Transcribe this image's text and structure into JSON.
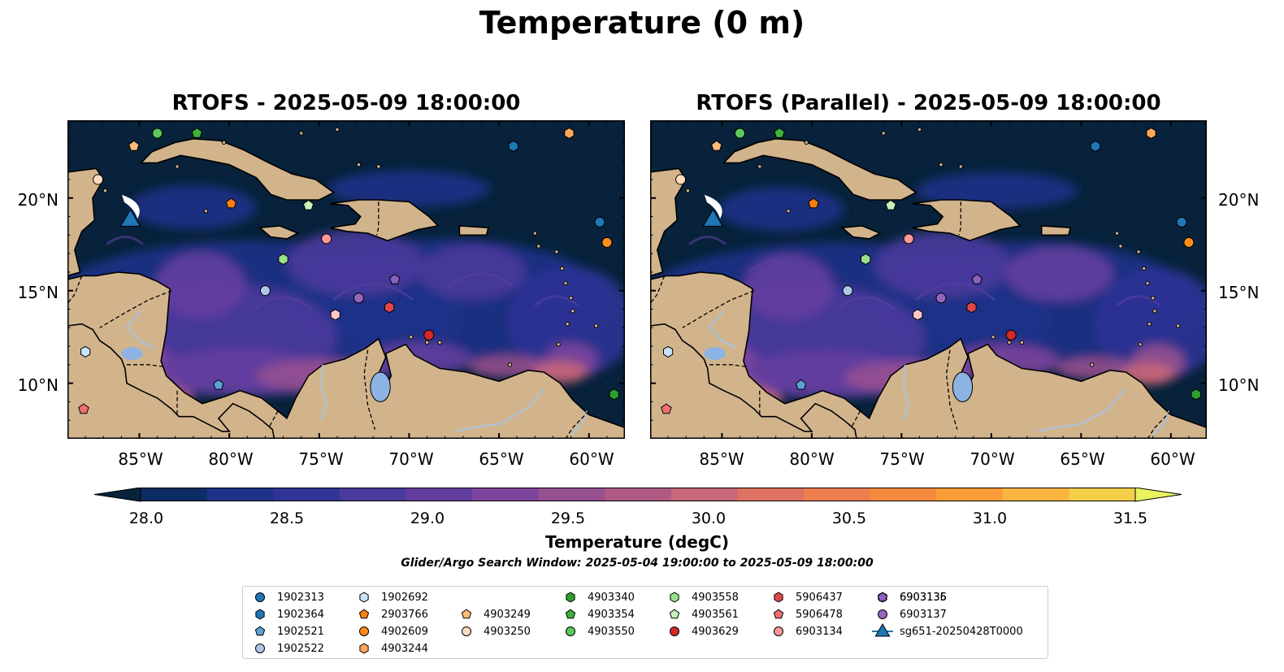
{
  "title": "Temperature (0 m)",
  "panels": [
    {
      "title": "RTOFS - 2025-05-09 18:00:00"
    },
    {
      "title": "RTOFS (Parallel) - 2025-05-09 18:00:00"
    }
  ],
  "map_extent": {
    "lon": [
      -89,
      -58
    ],
    "lat": [
      7,
      24.2
    ]
  },
  "lon_ticks": [
    {
      "value": -85,
      "label": "85°W"
    },
    {
      "value": -80,
      "label": "80°W"
    },
    {
      "value": -75,
      "label": "75°W"
    },
    {
      "value": -70,
      "label": "70°W"
    },
    {
      "value": -65,
      "label": "65°W"
    },
    {
      "value": -60,
      "label": "60°W"
    }
  ],
  "lat_ticks": [
    {
      "value": 20,
      "label": "20°N"
    },
    {
      "value": 15,
      "label": "15°N"
    },
    {
      "value": 10,
      "label": "10°N"
    }
  ],
  "colorbar": {
    "label": "Temperature (degC)",
    "min": 27.75,
    "max": 31.5,
    "ticks": [
      "28.0",
      "28.5",
      "29.0",
      "29.5",
      "30.0",
      "30.5",
      "31.0",
      "31.5"
    ],
    "colors": [
      "#07223a",
      "#0e2c64",
      "#1e3288",
      "#2f3496",
      "#4a3a9c",
      "#633e9e",
      "#7c449c",
      "#965090",
      "#af5a84",
      "#c86778",
      "#df7262",
      "#ee7e4e",
      "#f58a3f",
      "#fa9c37",
      "#fab540",
      "#f5cf4a",
      "#e9f25f"
    ]
  },
  "colors": {
    "land": "#d2b48c",
    "ocean_base": "#07223a",
    "river": "#a6c4df",
    "lake": "#8db3e2"
  },
  "search_window": "Glider/Argo Search Window: 2025-05-04 19:00:00 to 2025-05-09 18:00:00",
  "legend": [
    {
      "id": "1902313",
      "marker": "circle",
      "color": "#1f77b4"
    },
    {
      "id": "1902364",
      "marker": "hexagon",
      "color": "#1f77b4"
    },
    {
      "id": "1902521",
      "marker": "pentagon",
      "color": "#5aa1d8"
    },
    {
      "id": "1902522",
      "marker": "circle",
      "color": "#aec7e8"
    },
    {
      "id": "1902692",
      "marker": "hexagon",
      "color": "#c6e3f7"
    },
    {
      "id": "2903766",
      "marker": "pentagon",
      "color": "#ff7f0e"
    },
    {
      "id": "4902609",
      "marker": "circle",
      "color": "#ff8c1a"
    },
    {
      "id": "4903244",
      "marker": "hexagon",
      "color": "#ffa65c"
    },
    {
      "id": "4903249",
      "marker": "pentagon",
      "color": "#ffbb78"
    },
    {
      "id": "4903250",
      "marker": "circle",
      "color": "#ffdcbe"
    },
    {
      "id": "4903340",
      "marker": "hexagon",
      "color": "#2ca02c"
    },
    {
      "id": "4903354",
      "marker": "pentagon",
      "color": "#3cb43c"
    },
    {
      "id": "4903550",
      "marker": "circle",
      "color": "#5bc85b"
    },
    {
      "id": "4903558",
      "marker": "hexagon",
      "color": "#98df8a"
    },
    {
      "id": "4903561",
      "marker": "pentagon",
      "color": "#c8f0b8"
    },
    {
      "id": "4903629",
      "marker": "circle",
      "color": "#d62728"
    },
    {
      "id": "5906437",
      "marker": "hexagon",
      "color": "#e04848"
    },
    {
      "id": "5906478",
      "marker": "pentagon",
      "color": "#f07070"
    },
    {
      "id": "6903134",
      "marker": "circle",
      "color": "#ff9896"
    },
    {
      "id": "6903135",
      "marker": "hexagon",
      "color": "#ffc8c8"
    },
    {
      "id": "6903136",
      "marker": "pentagon",
      "color": "#8a60c0"
    },
    {
      "id": "6903137",
      "marker": "circle",
      "color": "#9467bd"
    },
    {
      "id": "sg651-20250428T0000",
      "marker": "triangle",
      "color": "#1f77b4"
    }
  ],
  "floats": [
    {
      "id": "1902313",
      "lon": -59.4,
      "lat": 18.7
    },
    {
      "id": "1902364",
      "lon": -64.2,
      "lat": 22.8
    },
    {
      "id": "1902521",
      "lon": -80.6,
      "lat": 9.9
    },
    {
      "id": "1902522",
      "lon": -78.0,
      "lat": 15.0
    },
    {
      "id": "1902692",
      "lon": -88.0,
      "lat": 11.7
    },
    {
      "id": "2903766",
      "lon": -79.9,
      "lat": 19.7
    },
    {
      "id": "4902609",
      "lon": -59.0,
      "lat": 17.6
    },
    {
      "id": "4903244",
      "lon": -61.1,
      "lat": 23.5
    },
    {
      "id": "4903249",
      "lon": -85.3,
      "lat": 22.8
    },
    {
      "id": "4903250",
      "lon": -87.3,
      "lat": 21.0
    },
    {
      "id": "4903340",
      "lon": -58.6,
      "lat": 9.4
    },
    {
      "id": "4903354",
      "lon": -81.8,
      "lat": 23.5
    },
    {
      "id": "4903550",
      "lon": -84.0,
      "lat": 23.5
    },
    {
      "id": "4903558",
      "lon": -77.0,
      "lat": 16.7
    },
    {
      "id": "4903561",
      "lon": -75.6,
      "lat": 19.6
    },
    {
      "id": "4903629",
      "lon": -68.9,
      "lat": 12.6
    },
    {
      "id": "5906437",
      "lon": -71.1,
      "lat": 14.1
    },
    {
      "id": "5906478",
      "lon": -88.1,
      "lat": 8.6
    },
    {
      "id": "6903134",
      "lon": -74.6,
      "lat": 17.8
    },
    {
      "id": "6903135",
      "lon": -74.1,
      "lat": 13.7
    },
    {
      "id": "6903136",
      "lon": -70.8,
      "lat": 15.6
    },
    {
      "id": "6903137",
      "lon": -72.8,
      "lat": 14.6
    }
  ],
  "glider": {
    "id": "sg651-20250428T0000",
    "lon": -85.5,
    "lat": 18.9
  }
}
